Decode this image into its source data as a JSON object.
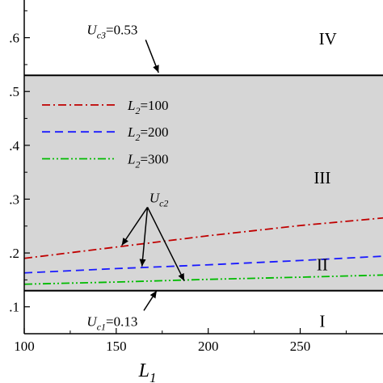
{
  "chart_data": {
    "type": "line",
    "xlabel": {
      "main": "L",
      "sub": "1"
    },
    "ylabel": "",
    "xlim": [
      100,
      295
    ],
    "ylim": [
      0.05,
      0.67
    ],
    "x_ticks": [
      100,
      150,
      200,
      250
    ],
    "x_tick_labels": [
      "100",
      "150",
      "200",
      "250"
    ],
    "y_ticks": [
      0.1,
      0.2,
      0.3,
      0.4,
      0.5,
      0.6
    ],
    "y_tick_labels": [
      ".1",
      ".2",
      ".3",
      ".4",
      ".5",
      ".6"
    ],
    "grid": false,
    "legend_position": "upper-left",
    "shaded_band": {
      "from": 0.13,
      "to": 0.53,
      "color": "#d6d6d6"
    },
    "thresholds": [
      {
        "name": "Uc3",
        "value": 0.53,
        "label_main": "U",
        "label_sub": "c3",
        "label_value": "=0.53"
      },
      {
        "name": "Uc1",
        "value": 0.13,
        "label_main": "U",
        "label_sub": "c1",
        "label_value": "=0.13"
      }
    ],
    "series": [
      {
        "name": "L2=100",
        "legend_main": "L",
        "legend_sub": "2",
        "legend_value": "=100",
        "color": "#c00000",
        "dash": "10,4,2,4",
        "x": [
          100,
          150,
          200,
          250,
          295
        ],
        "y": [
          0.19,
          0.211,
          0.232,
          0.251,
          0.265
        ]
      },
      {
        "name": "L2=200",
        "legend_main": "L",
        "legend_sub": "2",
        "legend_value": "=200",
        "color": "#1a1aff",
        "dash": "10,6",
        "x": [
          100,
          150,
          200,
          250,
          295
        ],
        "y": [
          0.163,
          0.171,
          0.178,
          0.186,
          0.194
        ]
      },
      {
        "name": "L2=300",
        "legend_main": "L",
        "legend_sub": "2",
        "legend_value": "=300",
        "color": "#00bb00",
        "dash": "10,3,2,3,2,3",
        "x": [
          100,
          150,
          200,
          250,
          295
        ],
        "y": [
          0.142,
          0.146,
          0.151,
          0.155,
          0.159
        ]
      }
    ],
    "region_labels": [
      {
        "text": "IV",
        "x": 265,
        "y": 0.598
      },
      {
        "text": "III",
        "x": 262,
        "y": 0.34
      },
      {
        "text": "II",
        "x": 262,
        "y": 0.178
      },
      {
        "text": "I",
        "x": 262,
        "y": 0.073
      }
    ],
    "uc2_annotation": {
      "label_main": "U",
      "label_sub": "c2",
      "label_x": 168,
      "label_y": 0.303,
      "origin_x": 167,
      "origin_y": 0.285,
      "targets": [
        {
          "x": 153,
          "y": 0.214
        },
        {
          "x": 164,
          "y": 0.175
        },
        {
          "x": 187,
          "y": 0.148
        }
      ]
    },
    "uc3_annotation": {
      "label_x": 134,
      "label_y": 0.615,
      "tail_x": 166,
      "tail_y": 0.596,
      "head_x": 173,
      "head_y": 0.535
    },
    "uc1_annotation": {
      "label_x": 134,
      "label_y": 0.073,
      "tail_x": 165,
      "tail_y": 0.093,
      "head_x": 172,
      "head_y": 0.13
    }
  }
}
